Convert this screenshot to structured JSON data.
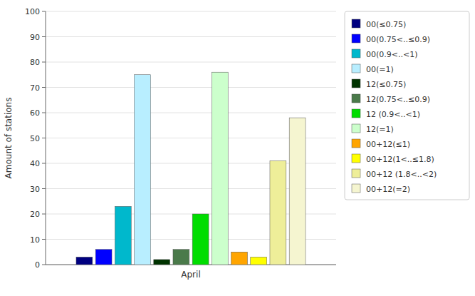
{
  "chart_data": {
    "type": "bar",
    "categories": [
      "April"
    ],
    "series": [
      {
        "name": "00(≤0.75)",
        "color": "#000080",
        "values": [
          3
        ]
      },
      {
        "name": "00(0.75<..≤0.9)",
        "color": "#0000FF",
        "values": [
          6
        ]
      },
      {
        "name": "00(0.9<..<1)",
        "color": "#00B8CC",
        "values": [
          23
        ]
      },
      {
        "name": "00(=1)",
        "color": "#B8EEFF",
        "values": [
          75
        ]
      },
      {
        "name": "12(≤0.75)",
        "color": "#003300",
        "values": [
          2
        ]
      },
      {
        "name": "12(0.75<..≤0.9)",
        "color": "#4A7A4A",
        "values": [
          6
        ]
      },
      {
        "name": "12 (0.9<..<1)",
        "color": "#00DD00",
        "values": [
          20
        ]
      },
      {
        "name": "12(=1)",
        "color": "#CCFFCC",
        "values": [
          76
        ]
      },
      {
        "name": "00+12(≤1)",
        "color": "#FFA500",
        "values": [
          5
        ]
      },
      {
        "name": "00+12(1<..≤1.8)",
        "color": "#FFFF00",
        "values": [
          3
        ]
      },
      {
        "name": "00+12 (1.8<..<2)",
        "color": "#EEEE99",
        "values": [
          41
        ]
      },
      {
        "name": "00+12(=2)",
        "color": "#F5F5D0",
        "values": [
          58
        ]
      }
    ],
    "ylabel": "Amount of stations",
    "ylim": [
      0,
      100
    ],
    "yticks": [
      0,
      10,
      20,
      30,
      40,
      50,
      60,
      70,
      80,
      90,
      100
    ],
    "grid": true,
    "legend": "top-right"
  }
}
